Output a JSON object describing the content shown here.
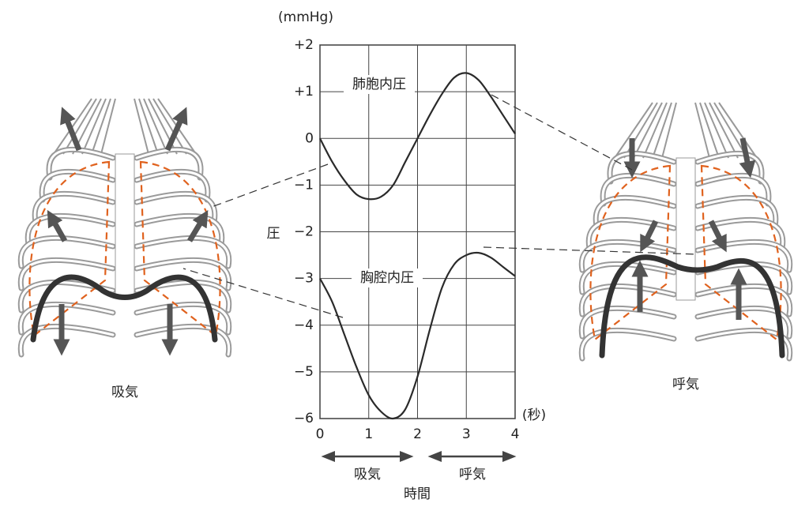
{
  "chart_data": {
    "type": "line",
    "y_unit": "(mmHg)",
    "y_label": "圧",
    "x_label": "時間",
    "x_unit": "(秒)",
    "x": [
      0,
      0.25,
      0.5,
      0.75,
      1,
      1.25,
      1.5,
      1.75,
      2,
      2.25,
      2.5,
      2.75,
      3,
      3.25,
      3.5,
      3.75,
      4
    ],
    "series": [
      {
        "name": "肺胞内圧",
        "color": "#2a2a2a",
        "values": [
          0,
          -0.5,
          -0.9,
          -1.2,
          -1.3,
          -1.25,
          -1.0,
          -0.5,
          0,
          0.5,
          0.95,
          1.3,
          1.4,
          1.25,
          0.9,
          0.5,
          0.1
        ]
      },
      {
        "name": "胸腔内圧",
        "color": "#2a2a2a",
        "values": [
          -3,
          -3.5,
          -4.2,
          -4.9,
          -5.5,
          -5.85,
          -6,
          -5.8,
          -5.1,
          -4.1,
          -3.2,
          -2.7,
          -2.5,
          -2.45,
          -2.55,
          -2.75,
          -2.95
        ]
      }
    ],
    "xlim": [
      0,
      4
    ],
    "xticks": [
      0,
      1,
      2,
      3,
      4
    ],
    "ylim": [
      -6,
      2
    ],
    "yticks": [
      {
        "value": 2,
        "label": "+2"
      },
      {
        "value": 1,
        "label": "+1"
      },
      0,
      {
        "value": -1,
        "label": "−1"
      },
      {
        "value": -2,
        "label": "−2"
      },
      {
        "value": -3,
        "label": "−3"
      },
      {
        "value": -4,
        "label": "−4"
      },
      {
        "value": -5,
        "label": "−5"
      },
      {
        "value": -6,
        "label": "−6"
      }
    ],
    "grid": true,
    "phase_labels": [
      "吸気",
      "呼気"
    ],
    "figure_labels": [
      "吸気",
      "呼気"
    ]
  }
}
